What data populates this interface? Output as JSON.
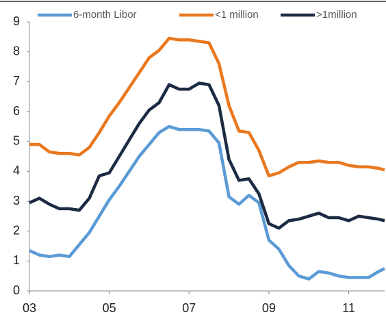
{
  "chart_data": {
    "type": "line",
    "x": [
      3,
      3.25,
      3.5,
      3.75,
      4,
      4.25,
      4.5,
      4.75,
      5,
      5.25,
      5.5,
      5.75,
      6,
      6.25,
      6.5,
      6.75,
      7,
      7.25,
      7.5,
      7.75,
      8,
      8.25,
      8.5,
      8.75,
      9,
      9.25,
      9.5,
      9.75,
      10,
      10.25,
      10.5,
      10.75,
      11,
      11.25,
      11.5,
      11.75,
      11.9
    ],
    "series": [
      {
        "name": "6-month Libor",
        "color": "#5b9bd5",
        "values": [
          1.35,
          1.2,
          1.15,
          1.2,
          1.15,
          1.55,
          1.95,
          2.5,
          3.05,
          3.5,
          4.0,
          4.5,
          4.9,
          5.3,
          5.5,
          5.4,
          5.4,
          5.4,
          5.35,
          4.95,
          3.15,
          2.9,
          3.2,
          2.95,
          1.7,
          1.4,
          0.85,
          0.5,
          0.4,
          0.65,
          0.6,
          0.5,
          0.45,
          0.45,
          0.45,
          0.65,
          0.75
        ]
      },
      {
        "name": "<1 million",
        "color": "#e9781f",
        "values": [
          4.9,
          4.9,
          4.65,
          4.6,
          4.6,
          4.55,
          4.8,
          5.3,
          5.85,
          6.3,
          6.8,
          7.3,
          7.8,
          8.05,
          8.45,
          8.4,
          8.4,
          8.35,
          8.3,
          7.6,
          6.2,
          5.35,
          5.3,
          4.7,
          3.85,
          3.95,
          4.15,
          4.3,
          4.3,
          4.35,
          4.3,
          4.3,
          4.2,
          4.15,
          4.15,
          4.1,
          4.05
        ]
      },
      {
        "name": ">1million",
        "color": "#1c2b43",
        "values": [
          2.95,
          3.1,
          2.9,
          2.75,
          2.75,
          2.7,
          3.1,
          3.85,
          3.95,
          4.5,
          5.05,
          5.6,
          6.05,
          6.3,
          6.9,
          6.75,
          6.75,
          6.95,
          6.9,
          6.2,
          4.4,
          3.7,
          3.75,
          3.25,
          2.25,
          2.1,
          2.35,
          2.4,
          2.5,
          2.6,
          2.45,
          2.45,
          2.35,
          2.5,
          2.45,
          2.4,
          2.35
        ]
      }
    ],
    "xlim": [
      3,
      11.9
    ],
    "xticks": [
      {
        "value": 3,
        "label": "03"
      },
      {
        "value": 5,
        "label": "05"
      },
      {
        "value": 7,
        "label": "07"
      },
      {
        "value": 9,
        "label": "09"
      },
      {
        "value": 11,
        "label": "11"
      }
    ],
    "ylim": [
      0,
      9
    ],
    "yticks": [
      0,
      1,
      2,
      3,
      4,
      5,
      6,
      7,
      8,
      9
    ],
    "grid": false,
    "legend": "top"
  }
}
